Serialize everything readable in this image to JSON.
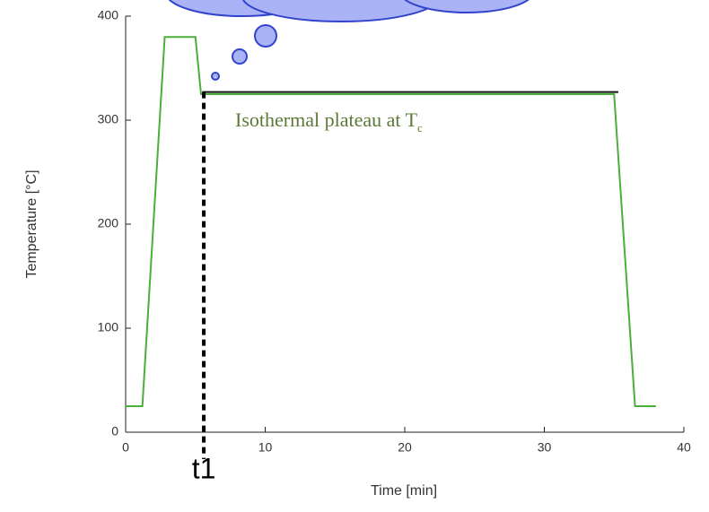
{
  "chart_data": {
    "type": "line",
    "x_label": "Time [min]",
    "y_label": "Temperature [°C]",
    "x": [
      0,
      1.2,
      2.8,
      5,
      5.4,
      35,
      36.5,
      38
    ],
    "series": [
      {
        "color": "#4caf3c",
        "values": [
          25,
          25,
          380,
          380,
          325,
          325,
          25,
          25
        ]
      }
    ],
    "xlim": [
      0,
      40
    ],
    "ylim": [
      0,
      400
    ],
    "xticks": [
      0,
      10,
      20,
      30,
      40
    ],
    "yticks": [
      0,
      100,
      200,
      300,
      400
    ],
    "annotations": {
      "plateau": {
        "text": "Isothermal plateau at T",
        "subscript": "c",
        "y": 327,
        "x_start": 5.5,
        "x_end": 35.3
      },
      "marker": {
        "text": "t1",
        "x": 5.6
      }
    }
  }
}
